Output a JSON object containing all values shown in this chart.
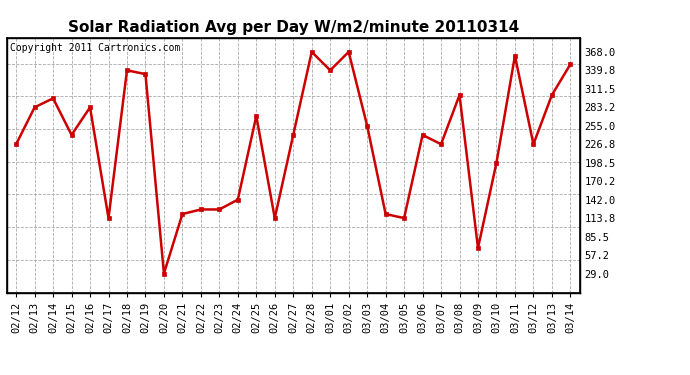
{
  "title": "Solar Radiation Avg per Day W/m2/minute 20110314",
  "copyright": "Copyright 2011 Cartronics.com",
  "dates": [
    "02/12",
    "02/13",
    "02/14",
    "02/15",
    "02/16",
    "02/17",
    "02/18",
    "02/19",
    "02/20",
    "02/21",
    "02/22",
    "02/23",
    "02/24",
    "02/25",
    "02/26",
    "02/27",
    "02/28",
    "03/01",
    "03/02",
    "03/03",
    "03/04",
    "03/05",
    "03/06",
    "03/07",
    "03/08",
    "03/09",
    "03/10",
    "03/11",
    "03/12",
    "03/13",
    "03/14"
  ],
  "values": [
    226.8,
    283.2,
    297.0,
    241.0,
    283.2,
    113.8,
    339.8,
    334.0,
    29.0,
    120.0,
    127.0,
    127.0,
    142.0,
    270.0,
    113.8,
    241.0,
    368.0,
    339.8,
    368.0,
    255.0,
    120.0,
    113.8,
    241.0,
    226.8,
    302.0,
    68.0,
    198.5,
    362.0,
    226.8,
    302.0,
    349.0
  ],
  "line_color": "#cc0000",
  "marker": "s",
  "marker_size": 2.5,
  "ylim": [
    0,
    390
  ],
  "yticks": [
    29.0,
    57.2,
    85.5,
    113.8,
    142.0,
    170.2,
    198.5,
    226.8,
    255.0,
    283.2,
    311.5,
    339.8,
    368.0
  ],
  "grid_color": "#aaaaaa",
  "bg_color": "#ffffff",
  "title_fontsize": 11,
  "copyright_fontsize": 7,
  "tick_fontsize": 7.5
}
